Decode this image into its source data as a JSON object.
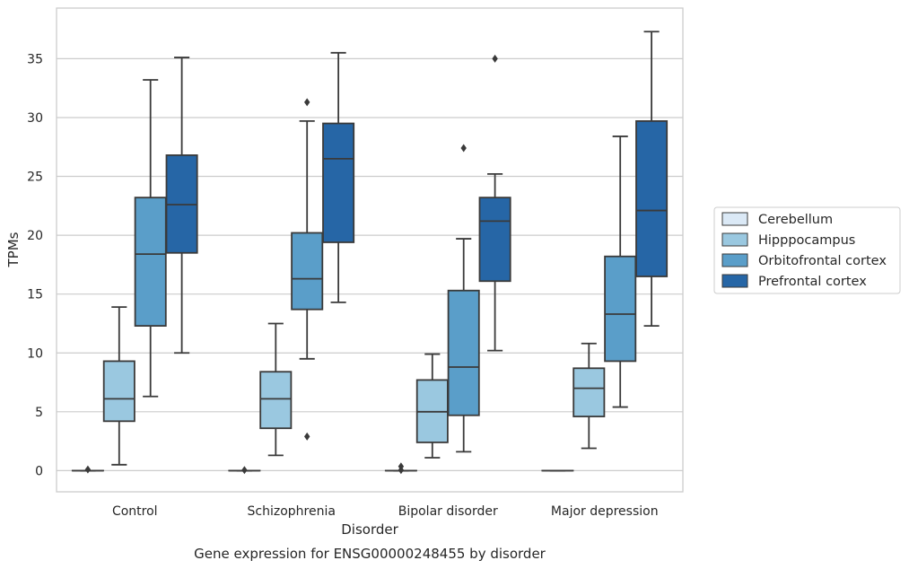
{
  "chart_data": {
    "type": "box",
    "title": "Gene expression for ENSG00000248455 by disorder",
    "xlabel": "Disorder",
    "ylabel": "TPMs",
    "ylim": [
      -1.8,
      39.3
    ],
    "yticks": [
      0,
      5,
      10,
      15,
      20,
      25,
      30,
      35
    ],
    "grid": "horizontal",
    "legend_position": "right",
    "categories": [
      "Control",
      "Schizophrenia",
      "Bipolar disorder",
      "Major depression"
    ],
    "series": [
      {
        "name": "Cerebellum",
        "color": "#dbe9f6",
        "boxes": [
          {
            "whislo": 0,
            "q1": 0,
            "med": 0,
            "q3": 0,
            "whishi": 0,
            "fliers": [
              0.1
            ]
          },
          {
            "whislo": 0,
            "q1": 0,
            "med": 0,
            "q3": 0,
            "whishi": 0,
            "fliers": [
              0.05
            ]
          },
          {
            "whislo": 0,
            "q1": 0,
            "med": 0,
            "q3": 0,
            "whishi": 0,
            "fliers": [
              0.05,
              0.35
            ]
          },
          {
            "whislo": 0,
            "q1": 0,
            "med": 0,
            "q3": 0,
            "whishi": 0,
            "fliers": []
          }
        ]
      },
      {
        "name": "Hipppocampus",
        "color": "#9ac8e0",
        "boxes": [
          {
            "whislo": 0.5,
            "q1": 4.2,
            "med": 6.1,
            "q3": 9.3,
            "whishi": 13.9,
            "fliers": []
          },
          {
            "whislo": 1.3,
            "q1": 3.6,
            "med": 6.1,
            "q3": 8.4,
            "whishi": 12.5,
            "fliers": []
          },
          {
            "whislo": 1.1,
            "q1": 2.4,
            "med": 5.0,
            "q3": 7.7,
            "whishi": 9.9,
            "fliers": []
          },
          {
            "whislo": 1.9,
            "q1": 4.6,
            "med": 7.0,
            "q3": 8.7,
            "whishi": 10.8,
            "fliers": []
          }
        ]
      },
      {
        "name": "Orbitofrontal cortex",
        "color": "#5a9ec9",
        "boxes": [
          {
            "whislo": 6.3,
            "q1": 12.3,
            "med": 18.4,
            "q3": 23.2,
            "whishi": 33.2,
            "fliers": []
          },
          {
            "whislo": 9.5,
            "q1": 13.7,
            "med": 16.3,
            "q3": 20.2,
            "whishi": 29.7,
            "fliers": [
              31.3,
              2.9
            ]
          },
          {
            "whislo": 1.6,
            "q1": 4.7,
            "med": 8.8,
            "q3": 15.3,
            "whishi": 19.7,
            "fliers": [
              27.4
            ]
          },
          {
            "whislo": 5.4,
            "q1": 9.3,
            "med": 13.3,
            "q3": 18.2,
            "whishi": 28.4,
            "fliers": []
          }
        ]
      },
      {
        "name": "Prefrontal cortex",
        "color": "#2666a6",
        "boxes": [
          {
            "whislo": 10.0,
            "q1": 18.5,
            "med": 22.6,
            "q3": 26.8,
            "whishi": 35.1,
            "fliers": []
          },
          {
            "whislo": 14.3,
            "q1": 19.4,
            "med": 26.5,
            "q3": 29.5,
            "whishi": 35.5,
            "fliers": []
          },
          {
            "whislo": 10.2,
            "q1": 16.1,
            "med": 21.2,
            "q3": 23.2,
            "whishi": 25.2,
            "fliers": [
              35.0
            ]
          },
          {
            "whislo": 12.3,
            "q1": 16.5,
            "med": 22.1,
            "q3": 29.7,
            "whishi": 37.3,
            "fliers": []
          }
        ]
      }
    ]
  }
}
